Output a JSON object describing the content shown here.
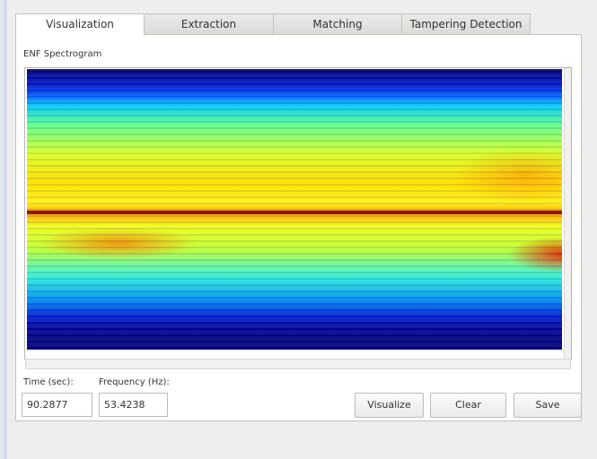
{
  "tabs": [
    "Visualization",
    "Extraction",
    "Matching",
    "Tampering Detection"
  ],
  "panel": {
    "title": "ENF Spectrogram"
  },
  "fields": [
    {
      "label": "Time (sec):",
      "value": "90.2877"
    },
    {
      "label": "Frequency (Hz):",
      "value": "53.4238"
    }
  ],
  "buttons": [
    "Visualize",
    "Clear",
    "Save"
  ]
}
